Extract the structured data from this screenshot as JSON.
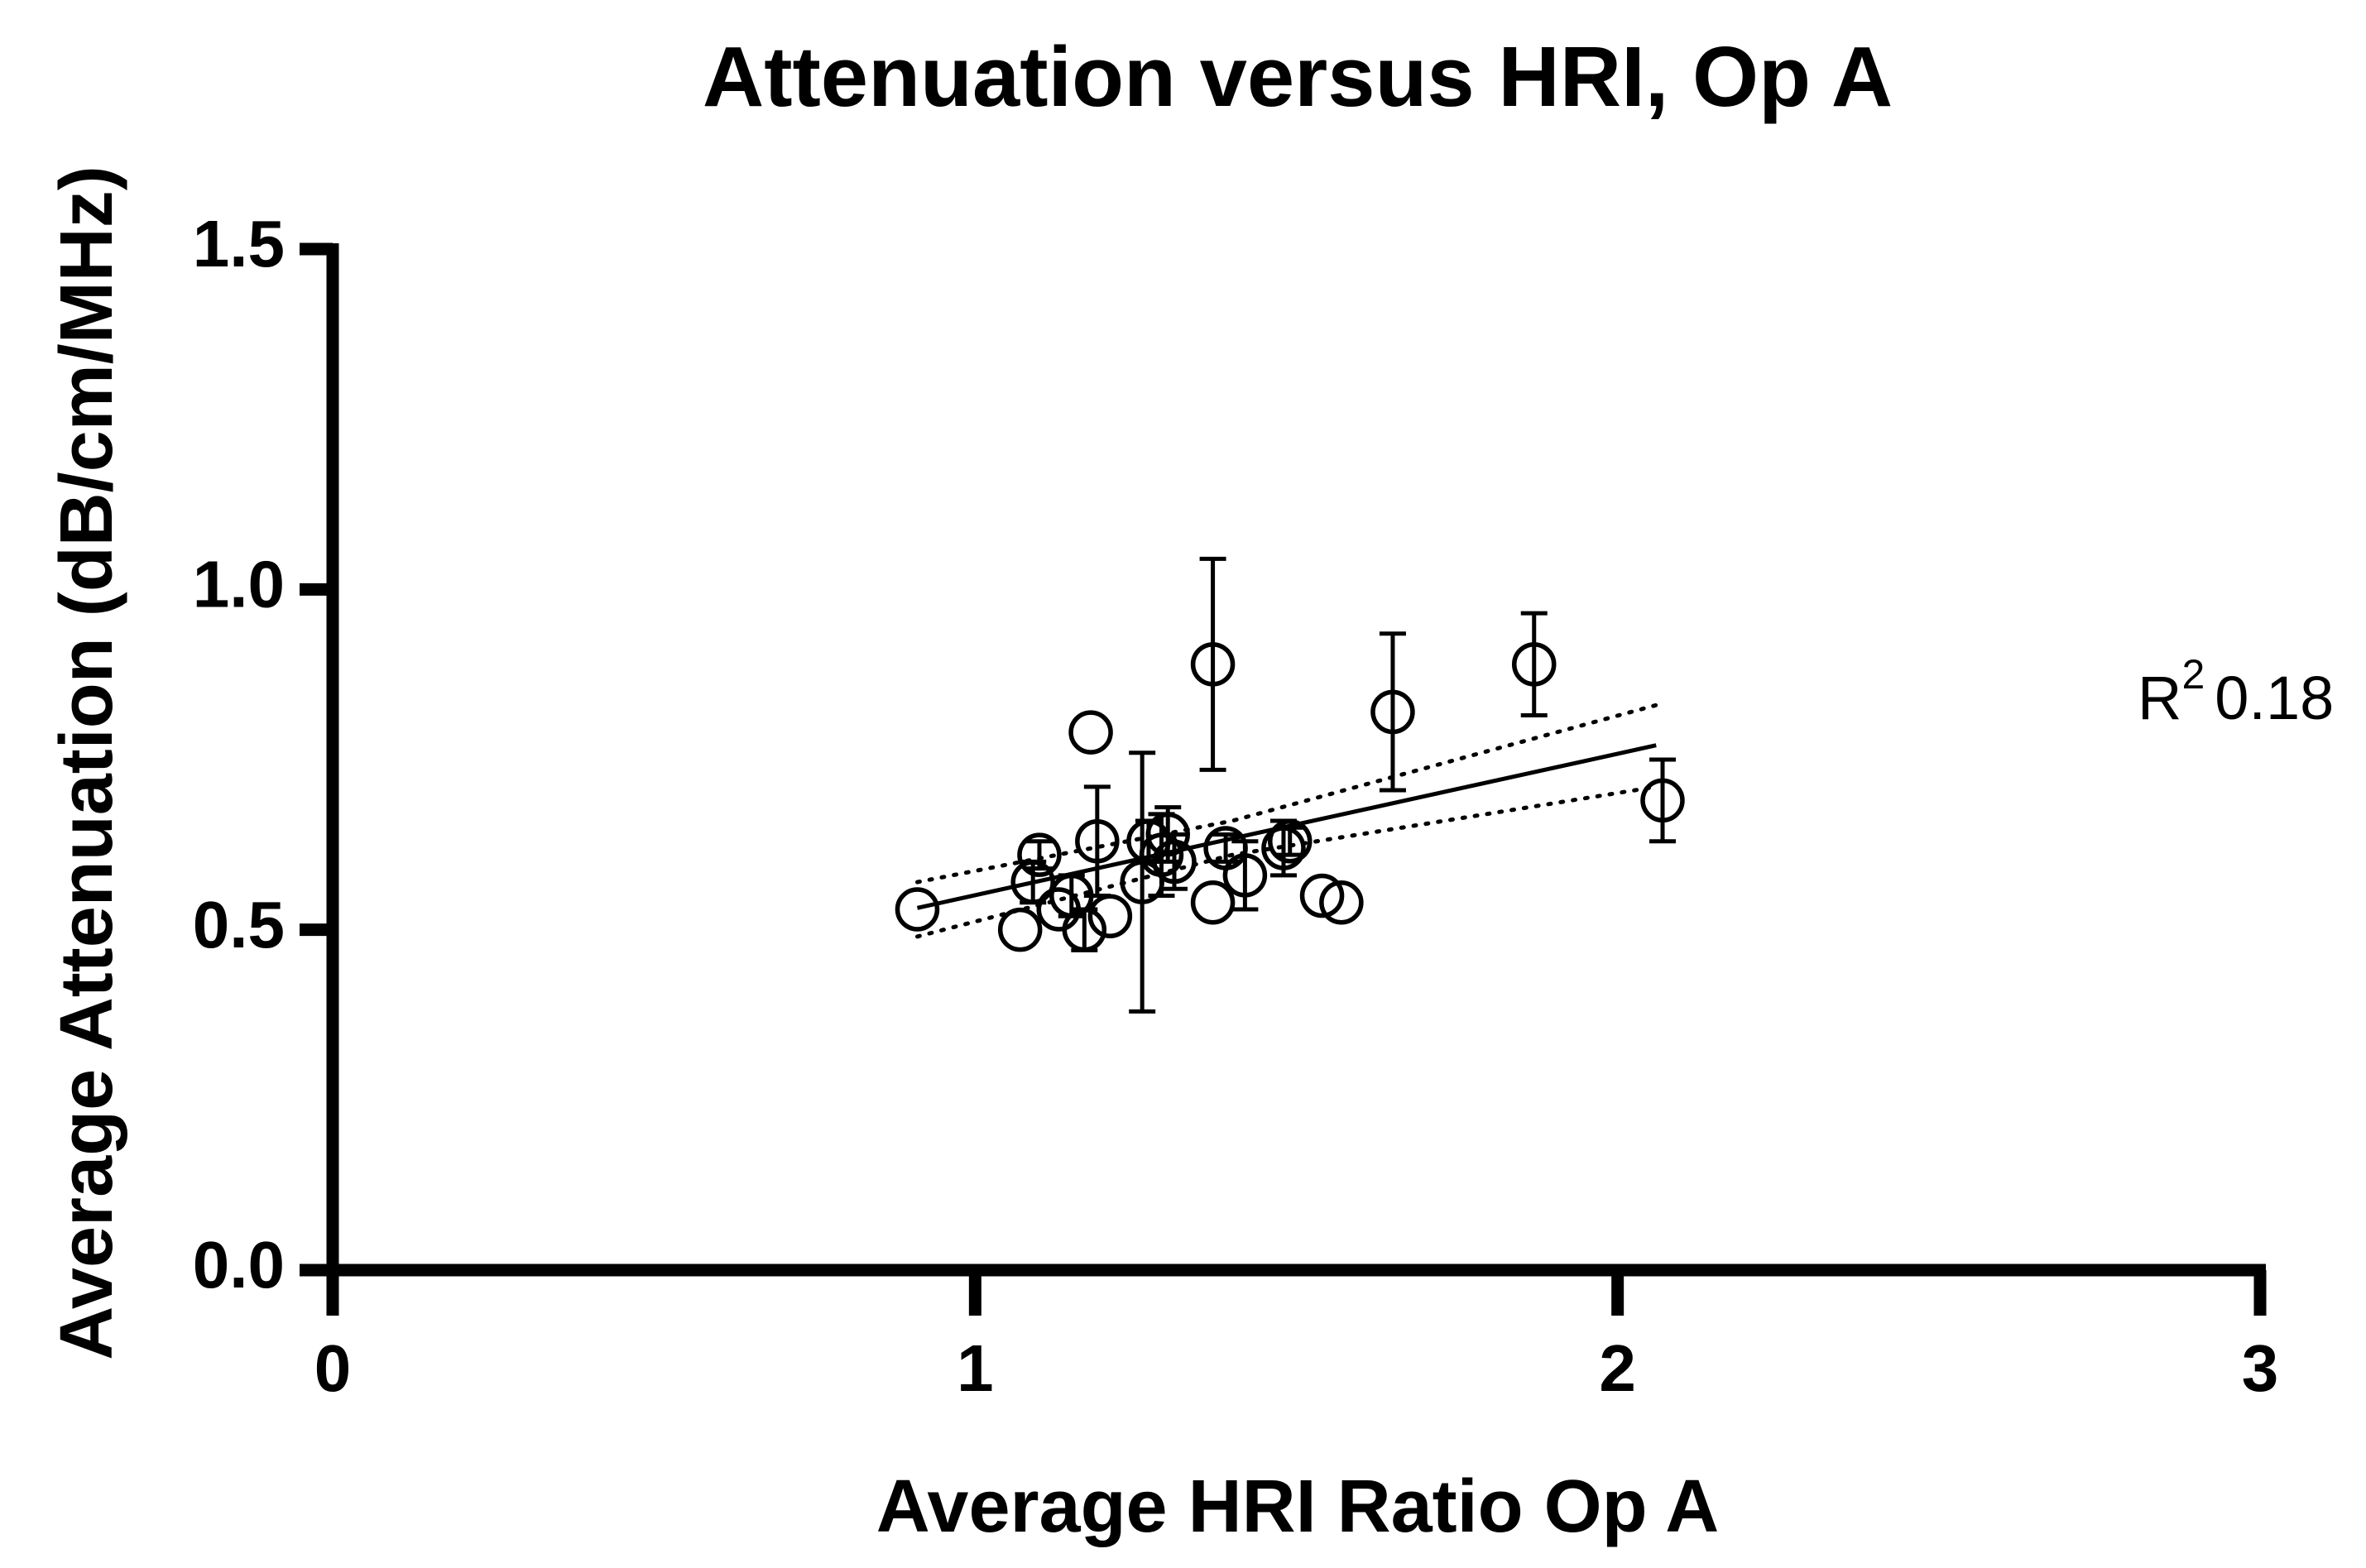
{
  "chart_data": {
    "type": "scatter",
    "title": "Attenuation versus HRI, Op A",
    "x_label": "Average HRI Ratio Op  A",
    "y_label": "Average Attenuation (dB/cm/MHz)",
    "xlim": [
      0,
      3
    ],
    "xticks": [
      0,
      1,
      2,
      3
    ],
    "ylim": [
      0,
      1.5
    ],
    "yticks": [
      {
        "value": 0,
        "label": "0.0"
      },
      {
        "value": 0.5,
        "label": "0.5"
      },
      {
        "value": 1,
        "label": "1.0"
      },
      {
        "value": 1.5,
        "label": "1.5"
      }
    ],
    "color": "#000000",
    "series": [
      {
        "x": [
          0.91,
          1.07,
          1.09,
          1.1,
          1.13,
          1.15,
          1.17,
          1.18,
          1.19,
          1.21,
          1.26,
          1.27,
          1.29,
          1.3,
          1.31,
          1.37,
          1.37,
          1.39,
          1.42,
          1.48,
          1.49,
          1.54,
          1.57,
          1.65,
          1.87,
          2.07
        ],
        "y": [
          0.53,
          0.5,
          0.57,
          0.61,
          0.53,
          0.55,
          0.5,
          0.79,
          0.63,
          0.52,
          0.57,
          0.63,
          0.61,
          0.64,
          0.6,
          0.89,
          0.54,
          0.62,
          0.58,
          0.62,
          0.63,
          0.55,
          0.54,
          0.82,
          0.89,
          0.69
        ],
        "errors": [
          null,
          null,
          0.03,
          0.02,
          null,
          0.03,
          0.03,
          null,
          0.08,
          null,
          0.19,
          0.03,
          0.06,
          0.04,
          0.04,
          0.155,
          null,
          0.02,
          0.05,
          0.04,
          0.02,
          null,
          null,
          0.115,
          0.075,
          0.06
        ]
      }
    ],
    "fit": {
      "x": [
        0.91,
        1.4,
        2.06
      ],
      "y": [
        0.532,
        0.634,
        0.771
      ],
      "upper": [
        0.57,
        0.66,
        0.83
      ],
      "lower": [
        0.49,
        0.61,
        0.71
      ]
    },
    "annotation": {
      "text": "R",
      "superscript": "2",
      "value": "0.18"
    }
  }
}
